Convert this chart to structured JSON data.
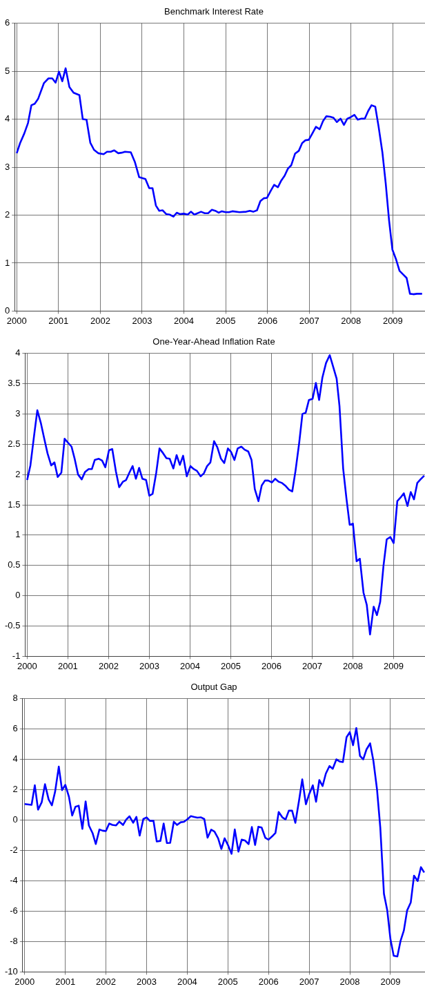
{
  "chart_data": [
    {
      "type": "line",
      "title": "Benchmark Interest Rate",
      "color": "#0000ff",
      "grid": true,
      "xlim": [
        1999.95,
        2009.77
      ],
      "ylim": [
        0,
        6
      ],
      "xticks": [
        2000,
        2001,
        2002,
        2003,
        2004,
        2005,
        2006,
        2007,
        2008,
        2009
      ],
      "yticks": [
        0,
        1,
        2,
        3,
        4,
        5,
        6
      ],
      "x": [
        2000.0,
        2000.08,
        2000.18,
        2000.27,
        2000.35,
        2000.43,
        2000.51,
        2000.65,
        2000.76,
        2000.85,
        2000.93,
        2001.01,
        2001.09,
        2001.17,
        2001.26,
        2001.36,
        2001.5,
        2001.58,
        2001.67,
        2001.76,
        2001.85,
        2001.95,
        2002.08,
        2002.16,
        2002.25,
        2002.33,
        2002.43,
        2002.51,
        2002.59,
        2002.73,
        2002.83,
        2002.93,
        2003.08,
        2003.17,
        2003.25,
        2003.33,
        2003.41,
        2003.49,
        2003.58,
        2003.66,
        2003.75,
        2003.83,
        2003.91,
        2004.0,
        2004.09,
        2004.17,
        2004.25,
        2004.41,
        2004.5,
        2004.58,
        2004.67,
        2004.75,
        2004.83,
        2004.91,
        2005.0,
        2005.08,
        2005.16,
        2005.33,
        2005.49,
        2005.58,
        2005.66,
        2005.75,
        2005.83,
        2005.91,
        2005.99,
        2006.08,
        2006.16,
        2006.25,
        2006.33,
        2006.41,
        2006.49,
        2006.57,
        2006.66,
        2006.75,
        2006.83,
        2006.91,
        2006.99,
        2007.08,
        2007.16,
        2007.25,
        2007.33,
        2007.41,
        2007.5,
        2007.58,
        2007.66,
        2007.75,
        2007.83,
        2007.91,
        2007.99,
        2008.08,
        2008.16,
        2008.25,
        2008.33,
        2008.41,
        2008.49,
        2008.58,
        2008.66,
        2008.75,
        2008.83,
        2008.91,
        2008.99,
        2009.08,
        2009.16,
        2009.25,
        2009.33,
        2009.41,
        2009.49,
        2009.58,
        2009.7
      ],
      "values": [
        3.29,
        3.5,
        3.7,
        3.92,
        4.29,
        4.32,
        4.42,
        4.75,
        4.85,
        4.85,
        4.76,
        4.99,
        4.79,
        5.06,
        4.67,
        4.55,
        4.5,
        4.0,
        3.99,
        3.51,
        3.36,
        3.29,
        3.27,
        3.32,
        3.32,
        3.35,
        3.29,
        3.3,
        3.32,
        3.31,
        3.1,
        2.79,
        2.75,
        2.56,
        2.56,
        2.2,
        2.09,
        2.1,
        2.02,
        2.01,
        1.97,
        2.05,
        2.02,
        2.03,
        2.01,
        2.07,
        2.01,
        2.07,
        2.04,
        2.04,
        2.11,
        2.09,
        2.05,
        2.08,
        2.06,
        2.06,
        2.08,
        2.06,
        2.07,
        2.09,
        2.07,
        2.1,
        2.29,
        2.35,
        2.36,
        2.51,
        2.63,
        2.58,
        2.72,
        2.82,
        2.97,
        3.04,
        3.28,
        3.34,
        3.5,
        3.56,
        3.57,
        3.71,
        3.84,
        3.79,
        3.96,
        4.06,
        4.05,
        4.03,
        3.94,
        4.01,
        3.88,
        4.01,
        4.04,
        4.09,
        3.99,
        4.01,
        4.01,
        4.17,
        4.29,
        4.26,
        3.84,
        3.31,
        2.66,
        1.89,
        1.28,
        1.07,
        0.84,
        0.76,
        0.69,
        0.36,
        0.35,
        0.36,
        0.36
      ]
    },
    {
      "type": "line",
      "title": "One-Year-Ahead Inflation Rate",
      "color": "#0000ff",
      "grid": true,
      "xlim": [
        1999.95,
        2009.77
      ],
      "ylim": [
        -1,
        4
      ],
      "xticks": [
        2000,
        2001,
        2002,
        2003,
        2004,
        2005,
        2006,
        2007,
        2008,
        2009
      ],
      "yticks": [
        -1,
        -0.5,
        0,
        0.5,
        1,
        1.5,
        2,
        2.5,
        3,
        3.5,
        4
      ],
      "x": [
        2000.0,
        2000.08,
        2000.17,
        2000.25,
        2000.34,
        2000.42,
        2000.5,
        2000.59,
        2000.67,
        2000.75,
        2000.84,
        2000.92,
        2001.01,
        2001.09,
        2001.17,
        2001.25,
        2001.34,
        2001.42,
        2001.51,
        2001.59,
        2001.66,
        2001.76,
        2001.84,
        2001.92,
        2002.01,
        2002.09,
        2002.18,
        2002.26,
        2002.35,
        2002.43,
        2002.51,
        2002.59,
        2002.67,
        2002.75,
        2002.83,
        2002.92,
        2003.0,
        2003.08,
        2003.17,
        2003.25,
        2003.34,
        2003.42,
        2003.5,
        2003.59,
        2003.67,
        2003.75,
        2003.83,
        2003.92,
        2004.01,
        2004.09,
        2004.17,
        2004.26,
        2004.34,
        2004.42,
        2004.5,
        2004.59,
        2004.67,
        2004.76,
        2004.84,
        2004.93,
        2005.01,
        2005.09,
        2005.17,
        2005.26,
        2005.34,
        2005.43,
        2005.51,
        2005.59,
        2005.68,
        2005.76,
        2005.84,
        2005.92,
        2006.01,
        2006.09,
        2006.18,
        2006.26,
        2006.35,
        2006.43,
        2006.51,
        2006.59,
        2006.68,
        2006.76,
        2006.84,
        2006.92,
        2007.01,
        2007.09,
        2007.17,
        2007.25,
        2007.34,
        2007.43,
        2007.51,
        2007.6,
        2007.67,
        2007.76,
        2007.84,
        2007.92,
        2008.0,
        2008.09,
        2008.17,
        2008.26,
        2008.34,
        2008.42,
        2008.51,
        2008.59,
        2008.67,
        2008.75,
        2008.83,
        2008.92,
        2009.0,
        2009.09,
        2009.17,
        2009.25,
        2009.34,
        2009.42,
        2009.5,
        2009.58,
        2009.66,
        2009.75
      ],
      "values": [
        1.91,
        2.15,
        2.64,
        3.06,
        2.84,
        2.59,
        2.35,
        2.15,
        2.2,
        1.96,
        2.03,
        2.59,
        2.52,
        2.46,
        2.25,
        2.0,
        1.92,
        2.04,
        2.09,
        2.09,
        2.24,
        2.26,
        2.23,
        2.12,
        2.4,
        2.42,
        2.05,
        1.79,
        1.88,
        1.91,
        2.03,
        2.14,
        1.93,
        2.11,
        1.93,
        1.91,
        1.65,
        1.68,
        2.03,
        2.43,
        2.35,
        2.27,
        2.26,
        2.1,
        2.32,
        2.16,
        2.31,
        1.97,
        2.14,
        2.09,
        2.06,
        1.97,
        2.02,
        2.14,
        2.2,
        2.55,
        2.45,
        2.26,
        2.19,
        2.43,
        2.37,
        2.24,
        2.43,
        2.46,
        2.41,
        2.38,
        2.24,
        1.76,
        1.56,
        1.82,
        1.9,
        1.9,
        1.87,
        1.93,
        1.88,
        1.86,
        1.81,
        1.75,
        1.72,
        2.06,
        2.52,
        3.0,
        3.02,
        3.23,
        3.25,
        3.51,
        3.23,
        3.6,
        3.84,
        3.97,
        3.79,
        3.58,
        3.13,
        2.1,
        1.61,
        1.17,
        1.19,
        0.57,
        0.61,
        0.05,
        -0.15,
        -0.64,
        -0.18,
        -0.32,
        -0.1,
        0.49,
        0.93,
        0.97,
        0.87,
        1.56,
        1.62,
        1.69,
        1.48,
        1.71,
        1.59,
        1.86,
        1.92,
        1.98
      ]
    },
    {
      "type": "line",
      "title": "Output Gap",
      "color": "#0000ff",
      "grid": true,
      "xlim": [
        1999.95,
        2009.85
      ],
      "ylim": [
        -10,
        8
      ],
      "xticks": [
        2000,
        2001,
        2002,
        2003,
        2004,
        2005,
        2006,
        2007,
        2008,
        2009
      ],
      "yticks": [
        -10,
        -8,
        -6,
        -4,
        -2,
        0,
        2,
        4,
        6,
        8
      ],
      "x": [
        2000.0,
        2000.17,
        2000.25,
        2000.33,
        2000.42,
        2000.5,
        2000.59,
        2000.67,
        2000.75,
        2000.84,
        2000.92,
        2001.0,
        2001.09,
        2001.17,
        2001.25,
        2001.33,
        2001.42,
        2001.5,
        2001.58,
        2001.67,
        2001.75,
        2001.84,
        2001.92,
        2002.0,
        2002.08,
        2002.16,
        2002.25,
        2002.33,
        2002.42,
        2002.5,
        2002.58,
        2002.67,
        2002.75,
        2002.83,
        2002.92,
        2003.0,
        2003.08,
        2003.17,
        2003.25,
        2003.34,
        2003.42,
        2003.5,
        2003.58,
        2003.67,
        2003.75,
        2003.84,
        2003.92,
        2004.01,
        2004.09,
        2004.17,
        2004.25,
        2004.34,
        2004.42,
        2004.5,
        2004.59,
        2004.67,
        2004.76,
        2004.84,
        2004.92,
        2005.01,
        2005.09,
        2005.17,
        2005.26,
        2005.34,
        2005.42,
        2005.51,
        2005.59,
        2005.67,
        2005.75,
        2005.83,
        2005.92,
        2006.0,
        2006.09,
        2006.17,
        2006.25,
        2006.34,
        2006.42,
        2006.5,
        2006.58,
        2006.66,
        2006.75,
        2006.83,
        2006.92,
        2007.0,
        2007.09,
        2007.17,
        2007.25,
        2007.33,
        2007.41,
        2007.5,
        2007.58,
        2007.67,
        2007.75,
        2007.83,
        2007.92,
        2008.0,
        2008.08,
        2008.16,
        2008.25,
        2008.33,
        2008.41,
        2008.5,
        2008.58,
        2008.67,
        2008.75,
        2008.84,
        2008.92,
        2009.0,
        2009.08,
        2009.17,
        2009.25,
        2009.33,
        2009.41,
        2009.5,
        2009.58,
        2009.67,
        2009.75,
        2009.83
      ],
      "values": [
        1.06,
        1.0,
        2.29,
        0.69,
        1.18,
        2.36,
        1.36,
        0.97,
        1.88,
        3.52,
        1.97,
        2.32,
        1.53,
        0.3,
        0.88,
        0.95,
        -0.58,
        1.23,
        -0.35,
        -0.85,
        -1.58,
        -0.62,
        -0.7,
        -0.72,
        -0.23,
        -0.32,
        -0.35,
        -0.1,
        -0.32,
        0.04,
        0.25,
        -0.18,
        0.21,
        -1.02,
        0.07,
        0.18,
        -0.05,
        -0.05,
        -1.41,
        -1.37,
        -0.23,
        -1.51,
        -1.5,
        -0.11,
        -0.32,
        -0.14,
        -0.11,
        0.07,
        0.26,
        0.21,
        0.16,
        0.18,
        0.07,
        -1.16,
        -0.63,
        -0.76,
        -1.2,
        -1.9,
        -1.2,
        -1.69,
        -2.22,
        -0.62,
        -2.08,
        -1.29,
        -1.34,
        -1.58,
        -0.46,
        -1.64,
        -0.44,
        -0.49,
        -1.16,
        -1.29,
        -1.07,
        -0.85,
        0.53,
        0.18,
        0.04,
        0.62,
        0.62,
        -0.18,
        1.27,
        2.68,
        1.04,
        1.71,
        2.29,
        1.21,
        2.64,
        2.24,
        3.06,
        3.56,
        3.38,
        4.0,
        3.86,
        3.82,
        5.46,
        5.79,
        4.93,
        6.06,
        4.23,
        4.0,
        4.65,
        5.05,
        3.91,
        2.01,
        -0.49,
        -4.86,
        -5.92,
        -7.85,
        -8.94,
        -8.98,
        -7.94,
        -7.27,
        -5.95,
        -5.42,
        -3.66,
        -4.01,
        -3.1,
        -3.45
      ]
    }
  ]
}
